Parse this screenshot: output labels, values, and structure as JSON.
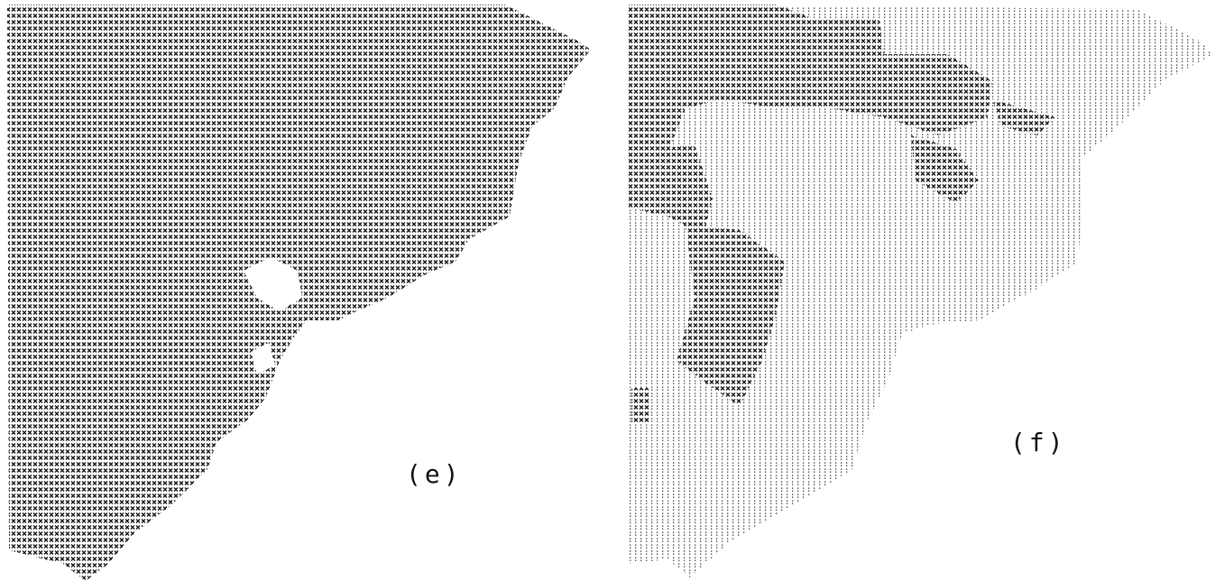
{
  "panels": [
    {
      "label": "(e)"
    },
    {
      "label": "(f)"
    }
  ]
}
